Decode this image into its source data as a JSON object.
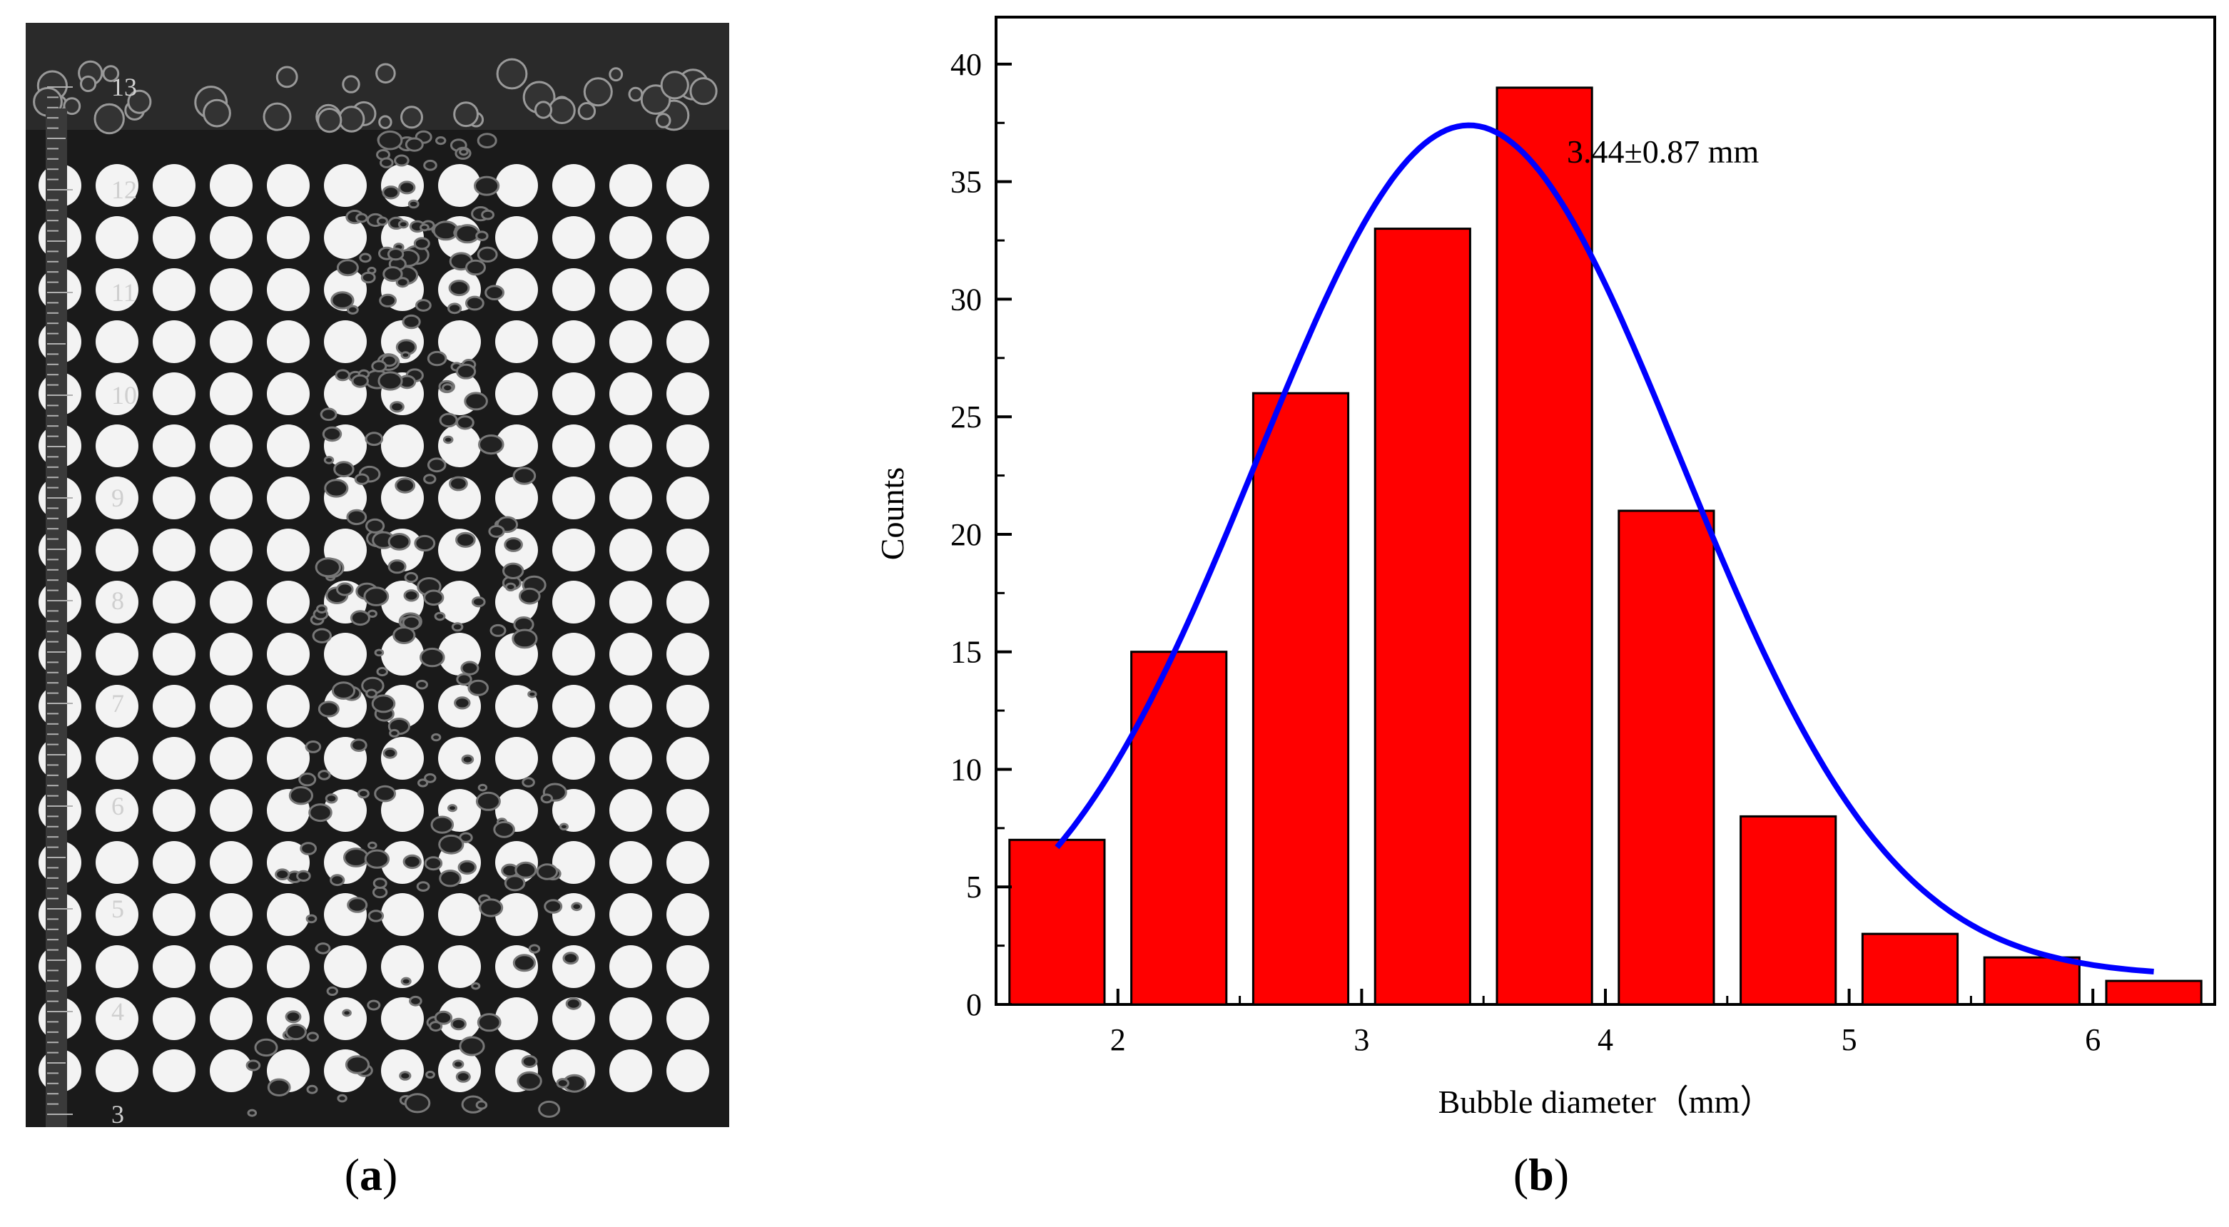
{
  "panels": {
    "a": {
      "label_open": "(",
      "label_letter": "a",
      "label_close": ")"
    },
    "b": {
      "label_open": "(",
      "label_letter": "b",
      "label_close": ")"
    }
  },
  "photo": {
    "scale_labels": [
      "13",
      "12",
      "11",
      "10",
      "9",
      "8",
      "7",
      "6",
      "5",
      "4",
      "3"
    ],
    "colors": {
      "background": "#1a1a1a",
      "dot": "#ffffff",
      "ruler": "#b0b0b0"
    }
  },
  "chart_data": {
    "type": "bar",
    "title": "",
    "xlabel": "Bubble diameter（mm）",
    "ylabel": "Counts",
    "annotation": "3.44±0.87 mm",
    "bin_width": 0.5,
    "bin_centers": [
      1.75,
      2.25,
      2.75,
      3.25,
      3.75,
      4.25,
      4.75,
      5.25,
      5.75,
      6.25
    ],
    "values": [
      7,
      15,
      26,
      33,
      39,
      21,
      8,
      3,
      2,
      1
    ],
    "xlim": [
      1.5,
      6.5
    ],
    "ylim": [
      0,
      42
    ],
    "xticks": [
      2,
      3,
      4,
      5,
      6
    ],
    "yticks": [
      0,
      5,
      10,
      15,
      20,
      25,
      30,
      35,
      40
    ],
    "fit": {
      "type": "gaussian",
      "mean": 3.44,
      "sigma": 0.87,
      "peak": 37.4,
      "baseline": 1.2,
      "x_range": [
        1.75,
        6.25
      ]
    },
    "colors": {
      "bar": "#ff0000",
      "bar_edge": "#000000",
      "fit": "#0000ff"
    }
  }
}
